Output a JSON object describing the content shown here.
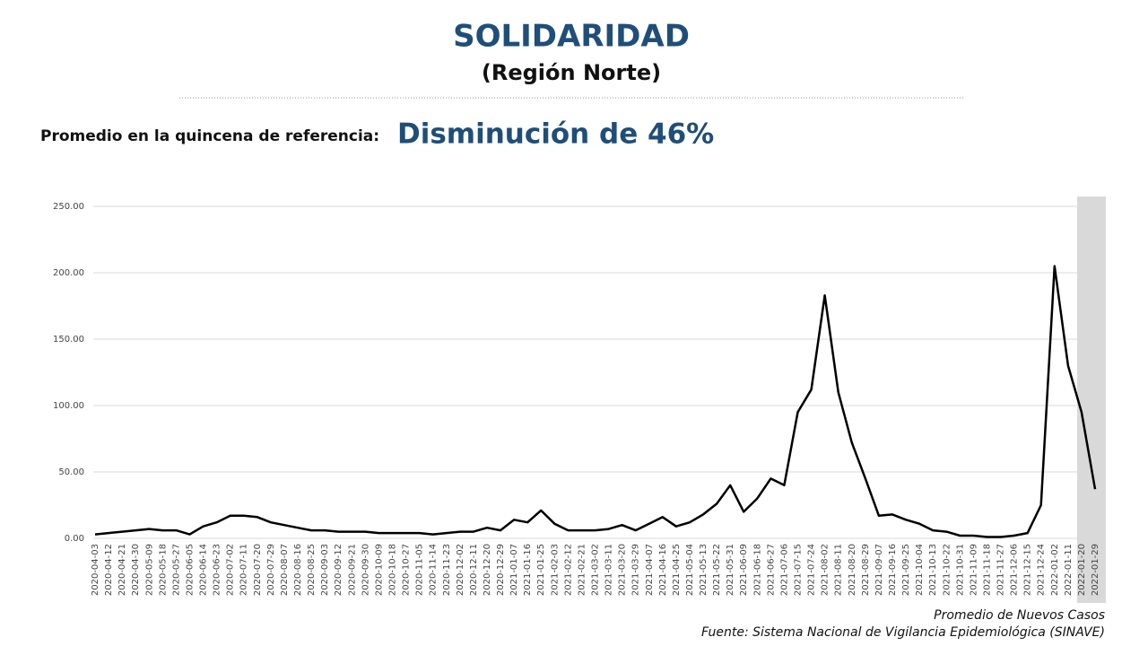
{
  "chart_data": {
    "type": "line",
    "title": "SOLIDARIDAD",
    "subtitle": "(Región Norte)",
    "reference_label": "Promedio en la quincena de referencia:",
    "reference_value": "Disminución de 46%",
    "series_label": "Promedio de Nuevos Casos",
    "source": "Fuente: Sistema Nacional de Vigilancia Epidemiológica (SINAVE)",
    "color": "#000000",
    "grid": true,
    "x": [
      "2020-04-03",
      "2020-04-12",
      "2020-04-21",
      "2020-04-30",
      "2020-05-09",
      "2020-05-18",
      "2020-05-27",
      "2020-06-05",
      "2020-06-14",
      "2020-06-23",
      "2020-07-02",
      "2020-07-11",
      "2020-07-20",
      "2020-07-29",
      "2020-08-07",
      "2020-08-16",
      "2020-08-25",
      "2020-09-03",
      "2020-09-12",
      "2020-09-21",
      "2020-09-30",
      "2020-10-09",
      "2020-10-18",
      "2020-10-27",
      "2020-11-05",
      "2020-11-14",
      "2020-11-23",
      "2020-12-02",
      "2020-12-11",
      "2020-12-20",
      "2020-12-29",
      "2021-01-07",
      "2021-01-16",
      "2021-01-25",
      "2021-02-03",
      "2021-02-12",
      "2021-02-21",
      "2021-03-02",
      "2021-03-11",
      "2021-03-20",
      "2021-03-29",
      "2021-04-07",
      "2021-04-16",
      "2021-04-25",
      "2021-05-04",
      "2021-05-13",
      "2021-05-22",
      "2021-05-31",
      "2021-06-09",
      "2021-06-18",
      "2021-06-27",
      "2021-07-06",
      "2021-07-15",
      "2021-07-24",
      "2021-08-02",
      "2021-08-11",
      "2021-08-20",
      "2021-08-29",
      "2021-09-07",
      "2021-09-16",
      "2021-09-25",
      "2021-10-04",
      "2021-10-13",
      "2021-10-22",
      "2021-10-31",
      "2021-11-09",
      "2021-11-18",
      "2021-11-27",
      "2021-12-06",
      "2021-12-15",
      "2021-12-24",
      "2022-01-02",
      "2022-01-11",
      "2022-01-20",
      "2022-01-29"
    ],
    "values": [
      3,
      4,
      5,
      6,
      7,
      6,
      6,
      3,
      9,
      12,
      17,
      17,
      16,
      12,
      10,
      8,
      6,
      6,
      5,
      5,
      5,
      4,
      4,
      4,
      4,
      3,
      4,
      5,
      5,
      8,
      6,
      14,
      12,
      21,
      11,
      6,
      6,
      6,
      7,
      10,
      6,
      11,
      16,
      9,
      12,
      18,
      26,
      40,
      20,
      30,
      45,
      40,
      95,
      112,
      183,
      110,
      72,
      45,
      17,
      18,
      14,
      11,
      6,
      5,
      2,
      2,
      1,
      1,
      2,
      4,
      25,
      205,
      130,
      95,
      37
    ],
    "ylim": [
      0,
      250
    ],
    "yticks": [
      {
        "value": 0,
        "label": "0.00"
      },
      {
        "value": 50,
        "label": "50.00"
      },
      {
        "value": 100,
        "label": "100.00"
      },
      {
        "value": 150,
        "label": "150.00"
      },
      {
        "value": 200,
        "label": "200.00"
      },
      {
        "value": 250,
        "label": "250.00"
      }
    ]
  }
}
